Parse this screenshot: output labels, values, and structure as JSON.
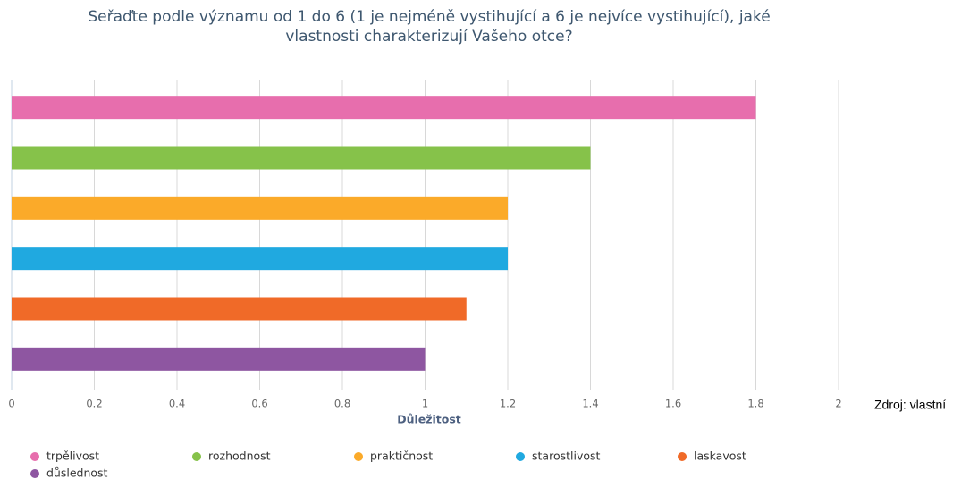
{
  "chart_data": {
    "type": "bar",
    "title": "Seřaďte podle významu od 1 do 6 (1 je nejméně vystihující a 6 je nejvíce vystihující), jaké vlastnosti charakterizují Vašeho otce?",
    "x_label": "Důležitost",
    "source": "Zdroj: vlastní",
    "series": [
      {
        "name": "trpělivost",
        "color": "#e76ead",
        "values": [
          1.8
        ]
      },
      {
        "name": "rozhodnost",
        "color": "#86c24a",
        "values": [
          1.4
        ]
      },
      {
        "name": "praktičnost",
        "color": "#fbaa29",
        "values": [
          1.2
        ]
      },
      {
        "name": "starostlivost",
        "color": "#20a9e0",
        "values": [
          1.2
        ]
      },
      {
        "name": "laskavost",
        "color": "#f06a28",
        "values": [
          1.1
        ]
      },
      {
        "name": "důslednost",
        "color": "#8e56a1",
        "values": [
          1.0
        ]
      }
    ],
    "xlim": [
      0,
      2
    ],
    "xticks": [
      0,
      0.2,
      0.4,
      0.6,
      0.8,
      1,
      1.2,
      1.4,
      1.6,
      1.8,
      2
    ],
    "grid": true
  }
}
